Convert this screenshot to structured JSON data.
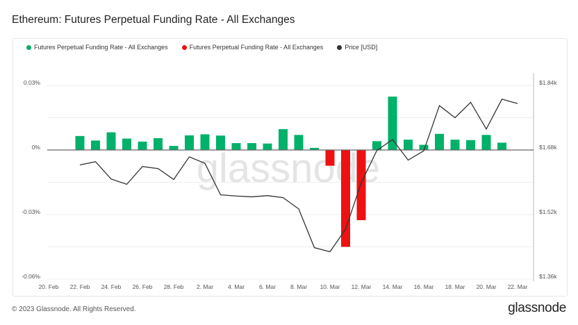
{
  "title": "Ethereum: Futures Perpetual Funding Rate - All Exchanges",
  "footer": "© 2023 Glassnode. All Rights Reserved.",
  "logo": "glassnode",
  "watermark": "glassnode",
  "chart_data": {
    "type": "bar",
    "title": "Ethereum: Futures Perpetual Funding Rate - All Exchanges",
    "legend_position": "top-left",
    "grid": true,
    "legend": [
      {
        "name": "Futures Perpetual Funding Rate - All Exchanges",
        "color": "#00b16a"
      },
      {
        "name": "Futures Perpetual Funding Rate - All Exchanges",
        "color": "#ee1111"
      },
      {
        "name": "Price [USD]",
        "color": "#333333"
      }
    ],
    "x_ticks": [
      "20. Feb",
      "22. Feb",
      "24. Feb",
      "26. Feb",
      "28. Feb",
      "2. Mar",
      "4. Mar",
      "6. Mar",
      "8. Mar",
      "10. Mar",
      "12. Mar",
      "14. Mar",
      "16. Mar",
      "18. Mar",
      "20. Mar",
      "22. Mar"
    ],
    "y_left": {
      "ticks": [
        "0.03%",
        "0%",
        "-0.03%",
        "-0.06%"
      ],
      "range": [
        -0.06,
        0.03
      ],
      "unit": "%"
    },
    "y_right": {
      "ticks": [
        "$1.84k",
        "$1.68k",
        "$1.52k",
        "$1.36k"
      ],
      "range": [
        1360,
        1840
      ],
      "unit": "USD"
    },
    "funding_rate": {
      "dates": [
        "22 Feb",
        "23 Feb",
        "24 Feb",
        "25 Feb",
        "26 Feb",
        "27 Feb",
        "28 Feb",
        "1 Mar",
        "2 Mar",
        "3 Mar",
        "4 Mar",
        "5 Mar",
        "6 Mar",
        "7 Mar",
        "8 Mar",
        "9 Mar",
        "10 Mar",
        "11 Mar",
        "12 Mar",
        "13 Mar",
        "14 Mar",
        "15 Mar",
        "16 Mar",
        "17 Mar",
        "18 Mar",
        "19 Mar",
        "20 Mar",
        "21 Mar"
      ],
      "values": [
        0.0065,
        0.0044,
        0.0082,
        0.0053,
        0.0039,
        0.0055,
        0.0019,
        0.0068,
        0.0073,
        0.0067,
        0.0032,
        0.0032,
        0.003,
        0.0097,
        0.007,
        0.001,
        -0.0073,
        -0.045,
        -0.0326,
        0.0041,
        0.0248,
        0.0048,
        0.0024,
        0.0075,
        0.0048,
        0.0046,
        0.007,
        0.0034
      ],
      "positive_color": "#00b16a",
      "negative_color": "#ee1111"
    },
    "price": {
      "name": "Price [USD]",
      "dates": [
        "22 Feb",
        "23 Feb",
        "24 Feb",
        "25 Feb",
        "26 Feb",
        "27 Feb",
        "28 Feb",
        "1 Mar",
        "2 Mar",
        "3 Mar",
        "4 Mar",
        "5 Mar",
        "6 Mar",
        "7 Mar",
        "8 Mar",
        "9 Mar",
        "10 Mar",
        "11 Mar",
        "12 Mar",
        "13 Mar",
        "14 Mar",
        "15 Mar",
        "16 Mar",
        "17 Mar",
        "18 Mar",
        "19 Mar",
        "20 Mar",
        "21 Mar",
        "22 Mar"
      ],
      "values": [
        1643,
        1651,
        1608,
        1595,
        1639,
        1634,
        1607,
        1663,
        1647,
        1569,
        1566,
        1564,
        1567,
        1562,
        1534,
        1438,
        1428,
        1484,
        1599,
        1679,
        1706,
        1655,
        1678,
        1790,
        1760,
        1798,
        1732,
        1806,
        1795
      ],
      "color": "#333333"
    }
  }
}
